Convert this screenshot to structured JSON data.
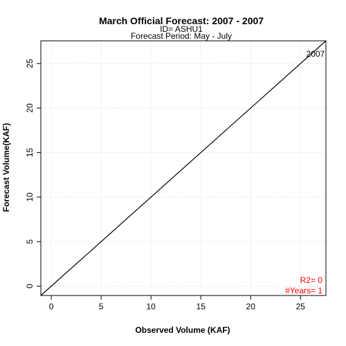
{
  "chart_data": {
    "type": "scatter",
    "title": "March Official Forecast: 2007 - 2007",
    "subtitle_lines": [
      "ID= ASHU1",
      "Forecast Period:  May - July"
    ],
    "xlabel": "Observed Volume (KAF)",
    "ylabel": "Forecast Volume(KAF)",
    "xlim": [
      -1.05,
      27.55
    ],
    "ylim": [
      -1.05,
      27.55
    ],
    "x_ticks": [
      0,
      5,
      10,
      15,
      20,
      25
    ],
    "y_ticks": [
      0,
      5,
      10,
      15,
      20,
      25
    ],
    "grid": true,
    "reference_line": "1:1",
    "points": [
      {
        "label": "2007",
        "x": 26.5,
        "y": 26.0
      }
    ],
    "annotations": [
      {
        "text": "R2=  0",
        "color": "#ff0000"
      },
      {
        "text": "#Years=  1",
        "color": "#ff0000"
      }
    ]
  }
}
